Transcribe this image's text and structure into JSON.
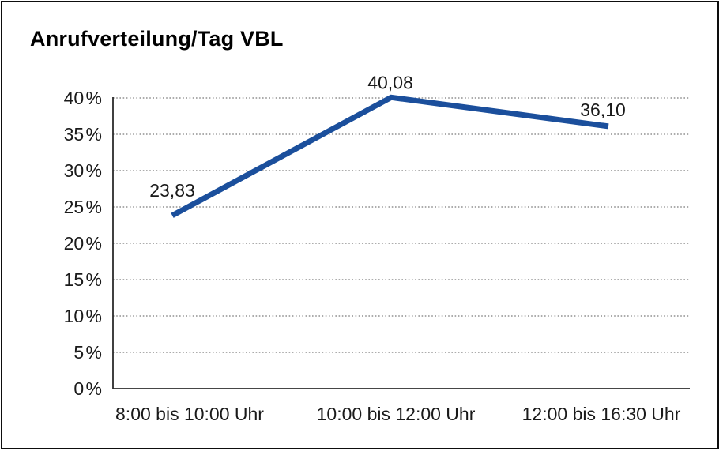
{
  "chart": {
    "title": "Anrufverteilung/Tag VBL"
  },
  "chart_data": {
    "type": "line",
    "title": "Anrufverteilung/Tag VBL",
    "categories": [
      "8:00 bis 10:00 Uhr",
      "10:00 bis 12:00 Uhr",
      "12:00 bis 16:30 Uhr"
    ],
    "values": [
      23.83,
      40.08,
      36.1
    ],
    "point_labels": [
      "23,83",
      "40,08",
      "36,10"
    ],
    "y_ticks": [
      "0 %",
      "5 %",
      "10 %",
      "15 %",
      "20 %",
      "25 %",
      "30 %",
      "35 %",
      "40 %"
    ],
    "y_tick_values": [
      0,
      5,
      10,
      15,
      20,
      25,
      30,
      35,
      40
    ],
    "ylim": [
      0,
      40
    ],
    "xlabel": "",
    "ylabel": "",
    "grid": "horizontal-dotted",
    "legend": "none",
    "colors": {
      "line": "#1B4F9C",
      "grid": "#7a7a7a",
      "axis": "#2b2b2b",
      "text": "#1a1a1a",
      "frame": "#0d0d0d",
      "background": "#ffffff"
    }
  }
}
